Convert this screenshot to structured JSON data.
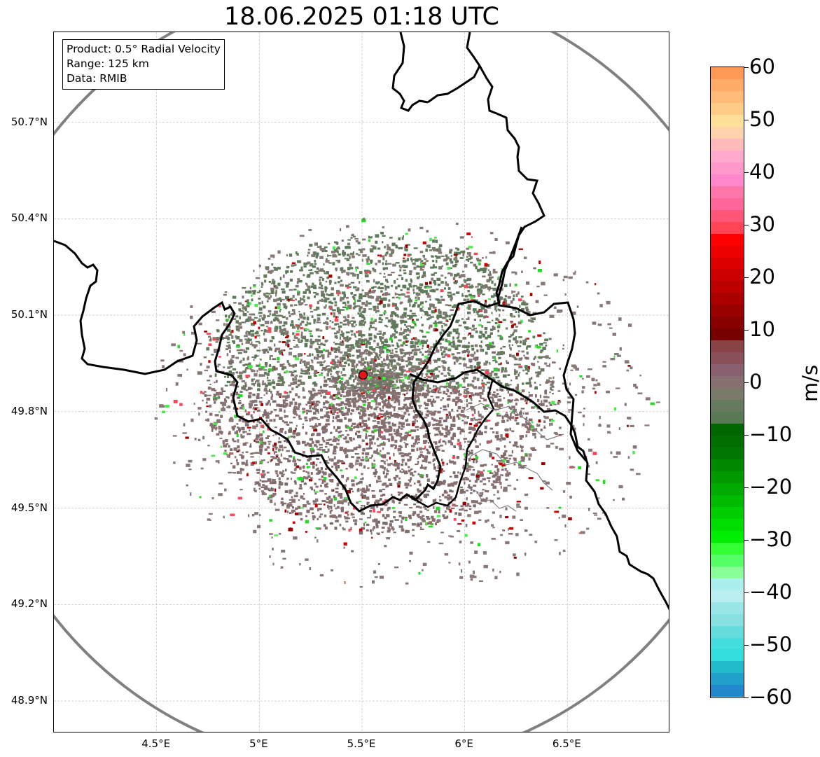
{
  "title": "18.06.2025 01:18 UTC",
  "info_box": {
    "product": "Product: 0.5° Radial Velocity",
    "range": "Range: 125 km",
    "source": "Data: RMIB"
  },
  "map": {
    "lon_range": [
      4.0,
      7.0
    ],
    "lat_range": [
      48.8,
      50.98
    ],
    "radar_site": {
      "lon": 5.505,
      "lat": 49.914
    },
    "radar_marker_color": "#e8141c",
    "range_ring_color": "#808080",
    "border_color": "#000000",
    "grid": true,
    "lat_ticks": [
      "50.7°N",
      "50.4°N",
      "50.1°N",
      "49.8°N",
      "49.5°N",
      "49.2°N",
      "48.9°N"
    ],
    "lon_ticks": [
      "4.5°E",
      "5°E",
      "5.5°E",
      "6°E",
      "6.5°E"
    ]
  },
  "colorbar": {
    "unit": "m/s",
    "ticks": [
      "60",
      "50",
      "40",
      "30",
      "20",
      "10",
      "0",
      "−10",
      "−20",
      "−30",
      "−40",
      "−50",
      "−60"
    ],
    "colors_top_to_bottom": [
      "#ff9955",
      "#ffaa66",
      "#ffbb77",
      "#ffcc88",
      "#ffe099",
      "#ffd4aa",
      "#ffbbbb",
      "#ffaacc",
      "#ff99cc",
      "#ff88cc",
      "#ff77aa",
      "#ff6699",
      "#ff5577",
      "#ff4455",
      "#ff0000",
      "#ee0000",
      "#dd0000",
      "#cc0000",
      "#bb0000",
      "#aa0000",
      "#990000",
      "#880000",
      "#770000",
      "#884444",
      "#885058",
      "#886070",
      "#887070",
      "#7a7a6a",
      "#667a5f",
      "#5a7a55",
      "#006600",
      "#006e00",
      "#007700",
      "#008800",
      "#009900",
      "#00aa00",
      "#00bb00",
      "#00cc00",
      "#00dd00",
      "#00ee00",
      "#33ff33",
      "#55ff66",
      "#88ff99",
      "#aaeeee",
      "#bbeeee",
      "#99e6e6",
      "#88e0e0",
      "#66dddd",
      "#44dddd",
      "#33dddd",
      "#22bbcc",
      "#22a0cc",
      "#2288cc"
    ]
  }
}
